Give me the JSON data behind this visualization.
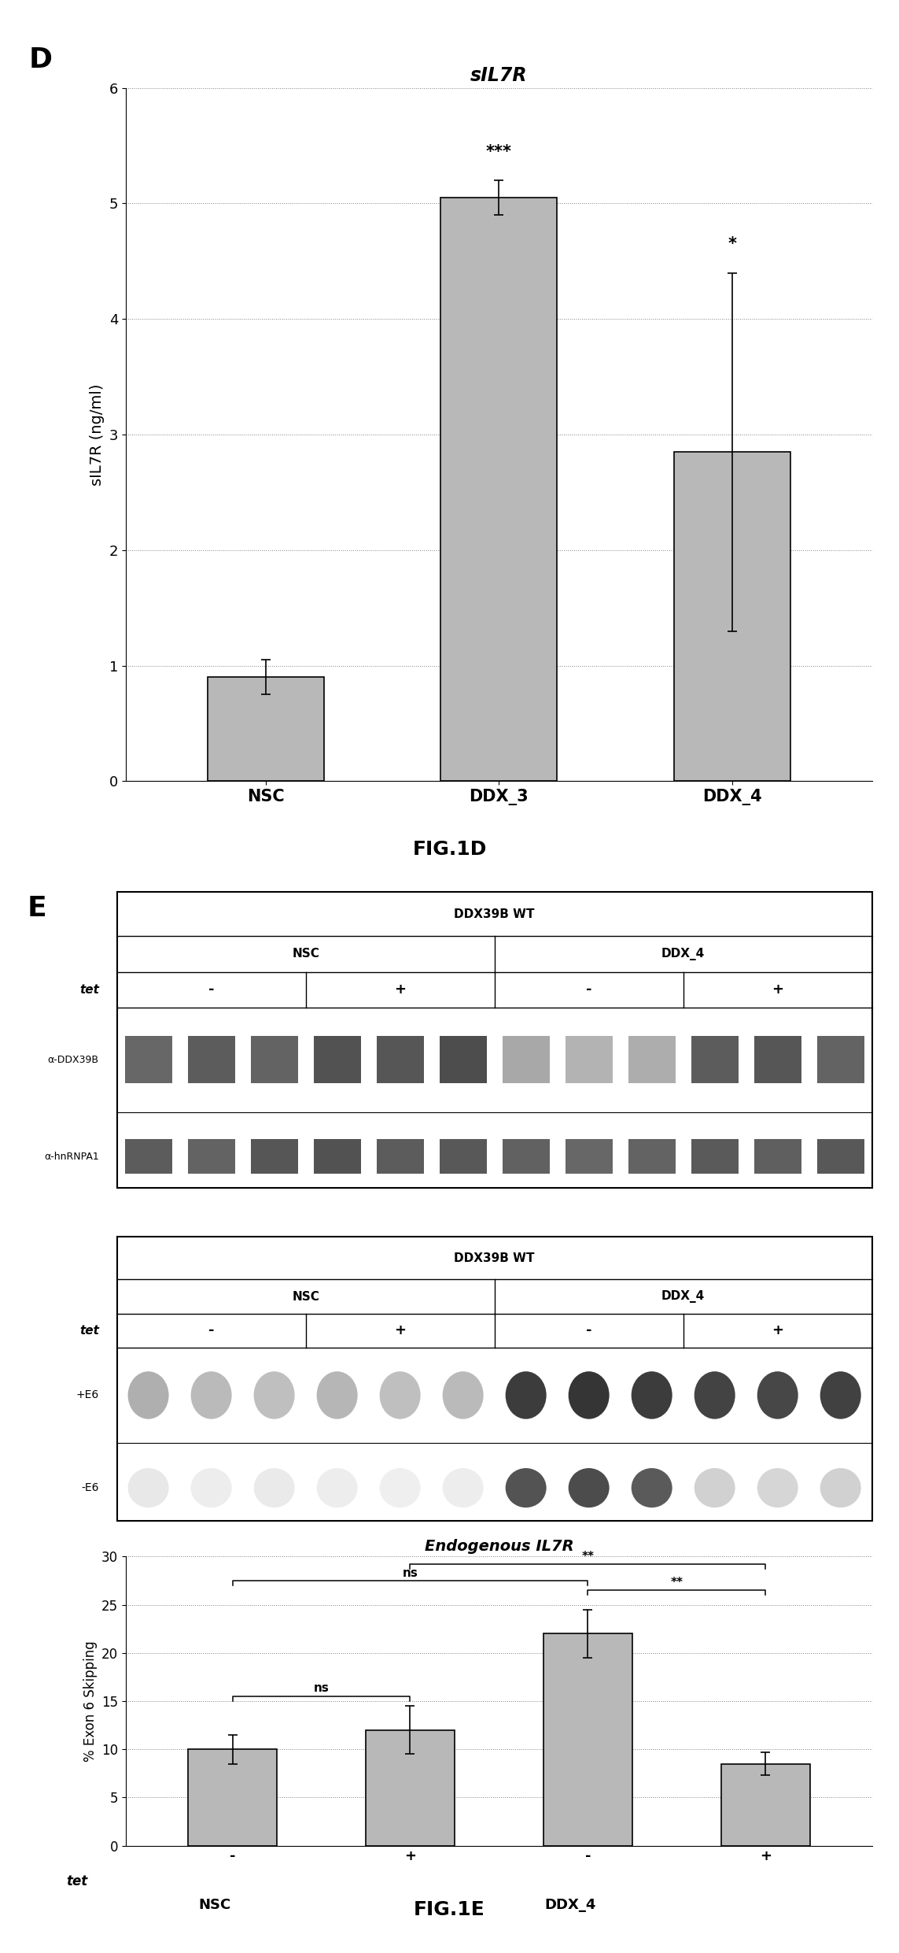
{
  "panel_D": {
    "title": "sIL7R",
    "ylabel": "sIL7R (ng/ml)",
    "categories": [
      "NSC",
      "DDX_3",
      "DDX_4"
    ],
    "values": [
      0.9,
      5.05,
      2.85
    ],
    "errors": [
      0.15,
      0.15,
      1.55
    ],
    "significance": [
      "",
      "***",
      "*"
    ],
    "ylim": [
      0,
      6
    ],
    "yticks": [
      0,
      1,
      2,
      3,
      4,
      5,
      6
    ],
    "bar_color": "#b8b8b8",
    "bar_edgecolor": "#000000"
  },
  "panel_E_bar": {
    "title": "Endogenous IL7R",
    "ylabel": "% Exon 6 Skipping",
    "categories": [
      "-",
      "+",
      "-",
      "+"
    ],
    "group_labels": [
      "NSC",
      "DDX_4"
    ],
    "values": [
      10.0,
      12.0,
      22.0,
      8.5
    ],
    "errors": [
      1.5,
      2.5,
      2.5,
      1.2
    ],
    "ylim": [
      0,
      30
    ],
    "yticks": [
      0,
      5,
      10,
      15,
      20,
      25,
      30
    ],
    "bar_color": "#b8b8b8",
    "bar_edgecolor": "#000000"
  },
  "background_color": "#ffffff",
  "panel_label_fontsize": 26,
  "fig_label_fontsize": 18
}
